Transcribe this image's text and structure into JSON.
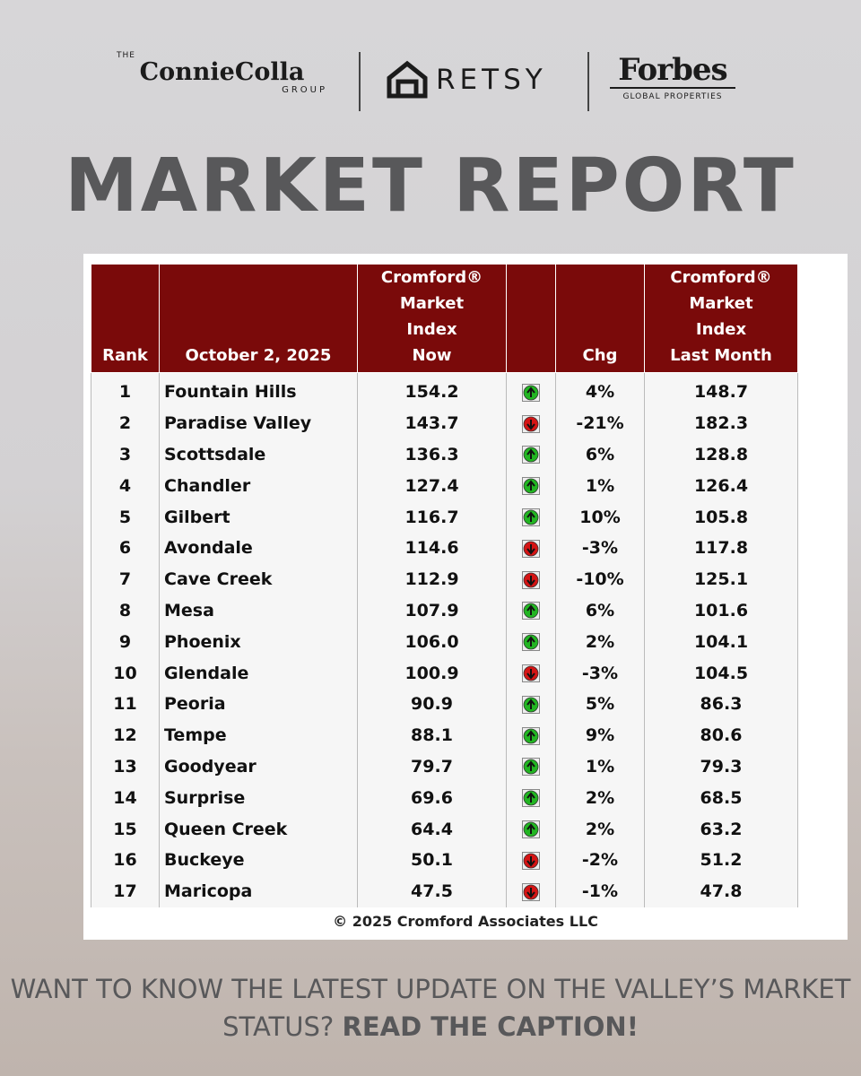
{
  "header": {
    "logos": {
      "connie_prefix": "THE",
      "connie": "ConnieColla",
      "connie_suffix": "GROUP",
      "retsy": "RETSY",
      "forbes": "Forbes",
      "forbes_sub": "GLOBAL PROPERTIES"
    },
    "title": "MARKET REPORT"
  },
  "table": {
    "headers": {
      "rank": "Rank",
      "date": "October 2, 2025",
      "now": [
        "Cromford®",
        "Market",
        "Index",
        "Now"
      ],
      "chg": "Chg",
      "last": [
        "Cromford®",
        "Market",
        "Index",
        "Last Month"
      ]
    },
    "rows": [
      [
        "1",
        "Fountain Hills",
        "154.2",
        "4%",
        "148.7"
      ],
      [
        "2",
        "Paradise Valley",
        "143.7",
        "-21%",
        "182.3"
      ],
      [
        "3",
        "Scottsdale",
        "136.3",
        "6%",
        "128.8"
      ],
      [
        "4",
        "Chandler",
        "127.4",
        "1%",
        "126.4"
      ],
      [
        "5",
        "Gilbert",
        "116.7",
        "10%",
        "105.8"
      ],
      [
        "6",
        "Avondale",
        "114.6",
        "-3%",
        "117.8"
      ],
      [
        "7",
        "Cave Creek",
        "112.9",
        "-10%",
        "125.1"
      ],
      [
        "8",
        "Mesa",
        "107.9",
        "6%",
        "101.6"
      ],
      [
        "9",
        "Phoenix",
        "106.0",
        "2%",
        "104.1"
      ],
      [
        "10",
        "Glendale",
        "100.9",
        "-3%",
        "104.5"
      ],
      [
        "11",
        "Peoria",
        "90.9",
        "5%",
        "86.3"
      ],
      [
        "12",
        "Tempe",
        "88.1",
        "9%",
        "80.6"
      ],
      [
        "13",
        "Goodyear",
        "79.7",
        "1%",
        "79.3"
      ],
      [
        "14",
        "Surprise",
        "69.6",
        "2%",
        "68.5"
      ],
      [
        "15",
        "Queen Creek",
        "64.4",
        "2%",
        "63.2"
      ],
      [
        "16",
        "Buckeye",
        "50.1",
        "-2%",
        "51.2"
      ],
      [
        "17",
        "Maricopa",
        "47.5",
        "-1%",
        "47.8"
      ]
    ],
    "footer": "© 2025 Cromford Associates LLC"
  },
  "cta": {
    "text": "WANT TO KNOW THE LATEST UPDATE ON THE VALLEY’S MARKET STATUS?",
    "emphasis": "READ THE CAPTION!"
  }
}
